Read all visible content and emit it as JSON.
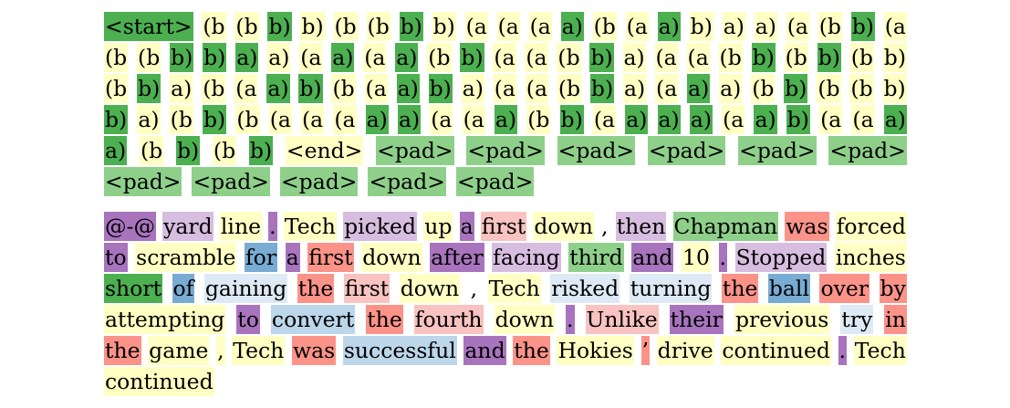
{
  "palette": {
    "g": "#4caf50",
    "gl": "#8ed08a",
    "y": "#ffffc4",
    "w": "#ffffff",
    "p": "#a874bd",
    "pl": "#d7bddf",
    "r": "#fb9389",
    "rl": "#f8c3c0",
    "b": "#78acd3",
    "bl": "#bcd6ea",
    "bll": "#ddeaf5"
  },
  "panels": [
    {
      "id": "brackets",
      "lines": [
        [
          [
            "<start>",
            "g"
          ],
          [
            "(b",
            "y"
          ],
          [
            "(b",
            "y"
          ],
          [
            "b)",
            "g"
          ],
          [
            "b)",
            "y"
          ],
          [
            "(b",
            "y"
          ],
          [
            "(b",
            "y"
          ],
          [
            "b)",
            "g"
          ],
          [
            "b)",
            "y"
          ],
          [
            "(a",
            "y"
          ],
          [
            "(a",
            "y"
          ],
          [
            "(a",
            "y"
          ],
          [
            "a)",
            "g"
          ],
          [
            "(b",
            "y"
          ],
          [
            "(a",
            "y"
          ],
          [
            "a)",
            "g"
          ],
          [
            "b)",
            "y"
          ],
          [
            "a)",
            "y"
          ],
          [
            "a)",
            "y"
          ],
          [
            "(a",
            "y"
          ],
          [
            "(b",
            "y"
          ],
          [
            "b)",
            "g"
          ],
          [
            "(a",
            "y"
          ]
        ],
        [
          [
            "(b",
            "y"
          ],
          [
            "(b",
            "y"
          ],
          [
            "b)",
            "g"
          ],
          [
            "b)",
            "g"
          ],
          [
            "a)",
            "g"
          ],
          [
            "a)",
            "y"
          ],
          [
            "(a",
            "y"
          ],
          [
            "a)",
            "g"
          ],
          [
            "(a",
            "y"
          ],
          [
            "a)",
            "g"
          ],
          [
            "(b",
            "y"
          ],
          [
            "b)",
            "g"
          ],
          [
            "(a",
            "y"
          ],
          [
            "(a",
            "y"
          ],
          [
            "(b",
            "y"
          ],
          [
            "b)",
            "g"
          ],
          [
            "a)",
            "y"
          ],
          [
            "(a",
            "y"
          ],
          [
            "(a",
            "y"
          ],
          [
            "(b",
            "y"
          ],
          [
            "b)",
            "g"
          ],
          [
            "(b",
            "y"
          ],
          [
            "b)",
            "g"
          ],
          [
            "(b",
            "y"
          ],
          [
            "b)",
            "y"
          ]
        ],
        [
          [
            "(b",
            "y"
          ],
          [
            "b)",
            "g"
          ],
          [
            "a)",
            "y"
          ],
          [
            "(b",
            "y"
          ],
          [
            "(a",
            "y"
          ],
          [
            "a)",
            "g"
          ],
          [
            "b)",
            "g"
          ],
          [
            "(b",
            "y"
          ],
          [
            "(a",
            "y"
          ],
          [
            "a)",
            "g"
          ],
          [
            "b)",
            "g"
          ],
          [
            "a)",
            "y"
          ],
          [
            "(a",
            "y"
          ],
          [
            "(a",
            "y"
          ],
          [
            "(b",
            "y"
          ],
          [
            "b)",
            "g"
          ],
          [
            "a)",
            "y"
          ],
          [
            "(a",
            "y"
          ],
          [
            "a)",
            "g"
          ],
          [
            "a)",
            "y"
          ],
          [
            "(b",
            "y"
          ],
          [
            "b)",
            "g"
          ],
          [
            "(b",
            "y"
          ],
          [
            "(b",
            "y"
          ],
          [
            "b)",
            "y"
          ]
        ],
        [
          [
            "b)",
            "g"
          ],
          [
            "a)",
            "y"
          ],
          [
            "(b",
            "y"
          ],
          [
            "b)",
            "g"
          ],
          [
            "(b",
            "y"
          ],
          [
            "(a",
            "y"
          ],
          [
            "(a",
            "y"
          ],
          [
            "(a",
            "y"
          ],
          [
            "a)",
            "g"
          ],
          [
            "a)",
            "g"
          ],
          [
            "(a",
            "y"
          ],
          [
            "(a",
            "y"
          ],
          [
            "a)",
            "g"
          ],
          [
            "(b",
            "y"
          ],
          [
            "b)",
            "g"
          ],
          [
            "(a",
            "y"
          ],
          [
            "a)",
            "g"
          ],
          [
            "a)",
            "g"
          ],
          [
            "a)",
            "g"
          ],
          [
            "(a",
            "y"
          ],
          [
            "a)",
            "g"
          ],
          [
            "b)",
            "g"
          ],
          [
            "(a",
            "y"
          ],
          [
            "(a",
            "y"
          ],
          [
            "a)",
            "g"
          ]
        ],
        [
          [
            "a)",
            "g"
          ],
          [
            "(b",
            "y"
          ],
          [
            "b)",
            "g"
          ],
          [
            "(b",
            "y"
          ],
          [
            "b)",
            "g"
          ],
          [
            "<end>",
            "y"
          ],
          [
            "<pad>",
            "gl"
          ],
          [
            "<pad>",
            "gl"
          ],
          [
            "<pad>",
            "gl"
          ],
          [
            "<pad>",
            "gl"
          ],
          [
            "<pad>",
            "gl"
          ],
          [
            "<pad>",
            "gl"
          ]
        ],
        [
          [
            "<pad>",
            "gl"
          ],
          [
            "<pad>",
            "gl"
          ],
          [
            "<pad>",
            "gl"
          ],
          [
            "<pad>",
            "gl"
          ],
          [
            "<pad>",
            "gl"
          ]
        ]
      ]
    },
    {
      "id": "words",
      "lines": [
        [
          [
            "@-@",
            "p"
          ],
          [
            "yard",
            "pl"
          ],
          [
            "line",
            "y"
          ],
          [
            ".",
            "p"
          ],
          [
            "Tech",
            "y"
          ],
          [
            "picked",
            "pl"
          ],
          [
            "up",
            "y"
          ],
          [
            "a",
            "p"
          ],
          [
            "first",
            "rl"
          ],
          [
            "down",
            "y"
          ],
          [
            ",",
            "w"
          ],
          [
            "then",
            "pl"
          ],
          [
            "Chapman",
            "gl"
          ],
          [
            "was",
            "r"
          ],
          [
            "forced",
            "y"
          ]
        ],
        [
          [
            "to",
            "p"
          ],
          [
            "scramble",
            "y"
          ],
          [
            "for",
            "b"
          ],
          [
            "a",
            "p"
          ],
          [
            "first",
            "r"
          ],
          [
            "down",
            "y"
          ],
          [
            "after",
            "p"
          ],
          [
            "facing",
            "pl"
          ],
          [
            "third",
            "gl"
          ],
          [
            "and",
            "p"
          ],
          [
            "10",
            "y"
          ],
          [
            ".",
            "p"
          ],
          [
            "Stopped",
            "pl"
          ],
          [
            "inches",
            "y"
          ]
        ],
        [
          [
            "short",
            "g"
          ],
          [
            "of",
            "b"
          ],
          [
            "gaining",
            "bll"
          ],
          [
            "the",
            "r"
          ],
          [
            "first",
            "rl"
          ],
          [
            "down",
            "y"
          ],
          [
            ",",
            "w"
          ],
          [
            "Tech",
            "y"
          ],
          [
            "risked",
            "bll"
          ],
          [
            "turning",
            "bll"
          ],
          [
            "the",
            "r"
          ],
          [
            "ball",
            "b"
          ],
          [
            "over",
            "r"
          ],
          [
            "by",
            "r"
          ]
        ],
        [
          [
            "attempting",
            "y"
          ],
          [
            "to",
            "p"
          ],
          [
            "convert",
            "bl"
          ],
          [
            "the",
            "r"
          ],
          [
            "fourth",
            "rl"
          ],
          [
            "down",
            "y"
          ],
          [
            ".",
            "p"
          ],
          [
            "Unlike",
            "rl"
          ],
          [
            "their",
            "p"
          ],
          [
            "previous",
            "y"
          ],
          [
            "try",
            "bll"
          ],
          [
            "in",
            "r"
          ]
        ],
        [
          [
            "the",
            "r"
          ],
          [
            "game",
            "y"
          ],
          [
            ",",
            "y"
          ],
          [
            "Tech",
            "y"
          ],
          [
            "was",
            "r"
          ],
          [
            "successful",
            "bl"
          ],
          [
            "and",
            "p"
          ],
          [
            "the",
            "r"
          ],
          [
            "Hokies",
            "y"
          ],
          [
            "’",
            "r"
          ],
          [
            "drive",
            "y"
          ],
          [
            "continued",
            "y"
          ],
          [
            ".",
            "p"
          ],
          [
            "Tech",
            "y"
          ]
        ],
        [
          [
            "continued",
            "y"
          ]
        ]
      ]
    }
  ]
}
